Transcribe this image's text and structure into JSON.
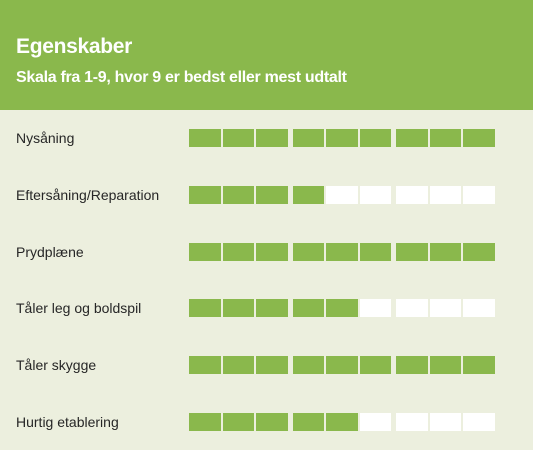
{
  "header": {
    "title": "Egenskaber",
    "subtitle": "Skala fra 1-9, hvor 9 er bedst eller mest udtalt"
  },
  "scale_max": 9,
  "colors": {
    "accent": "#8ab84c",
    "background": "#ecefde",
    "empty_segment": "#ffffff",
    "text": "#262626"
  },
  "rows": [
    {
      "label": "Nysåning",
      "rating": 9
    },
    {
      "label": "Eftersåning/Reparation",
      "rating": 4
    },
    {
      "label": "Prydplæne",
      "rating": 9
    },
    {
      "label": "Tåler leg og boldspil",
      "rating": 5
    },
    {
      "label": "Tåler skygge",
      "rating": 9
    },
    {
      "label": "Hurtig etablering",
      "rating": 5
    }
  ]
}
